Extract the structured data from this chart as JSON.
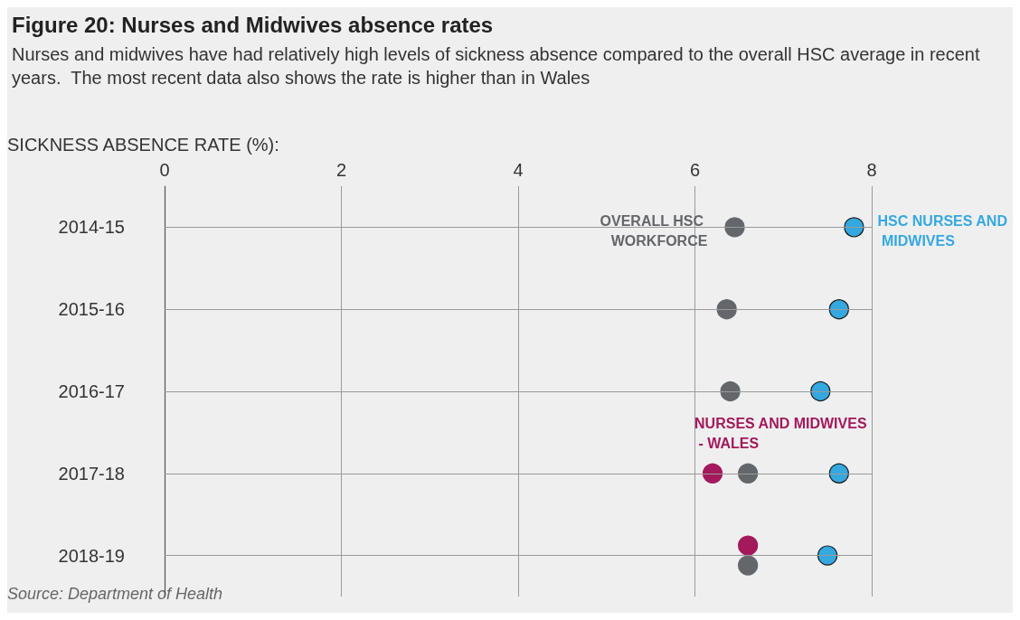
{
  "chart_data": {
    "type": "scatter",
    "title": "Figure 20: Nurses and Midwives absence rates",
    "subtitle": "Nurses and midwives have had relatively high levels of sickness absence compared to the overall HSC average in recent years.  The most recent data also shows the rate is higher than in Wales",
    "xlabel": "SICKNESS ABSENCE RATE (%):",
    "annotations": [
      "Source: Department of Health"
    ],
    "orientation": "horizontal",
    "categories": [
      "2014-15",
      "2015-16",
      "2016-17",
      "2017-18",
      "2018-19"
    ],
    "series": [
      {
        "name": "OVERALL HSC WORKFORCE",
        "color": "#63666a",
        "values": [
          6.45,
          6.36,
          6.4,
          6.6,
          6.6
        ]
      },
      {
        "name": "HSC NURSES AND MIDWIVES",
        "color": "#35a8e0",
        "values": [
          7.8,
          7.63,
          7.42,
          7.63,
          7.5
        ]
      },
      {
        "name": "NURSES AND MIDWIVES - WALES",
        "color": "#a3195b",
        "values": [
          null,
          null,
          null,
          6.2,
          6.6
        ]
      }
    ],
    "xlim": [
      0,
      8
    ],
    "xticks": [
      0,
      2,
      4,
      6,
      8
    ],
    "grid": true,
    "legend": false,
    "marker": "circle"
  }
}
